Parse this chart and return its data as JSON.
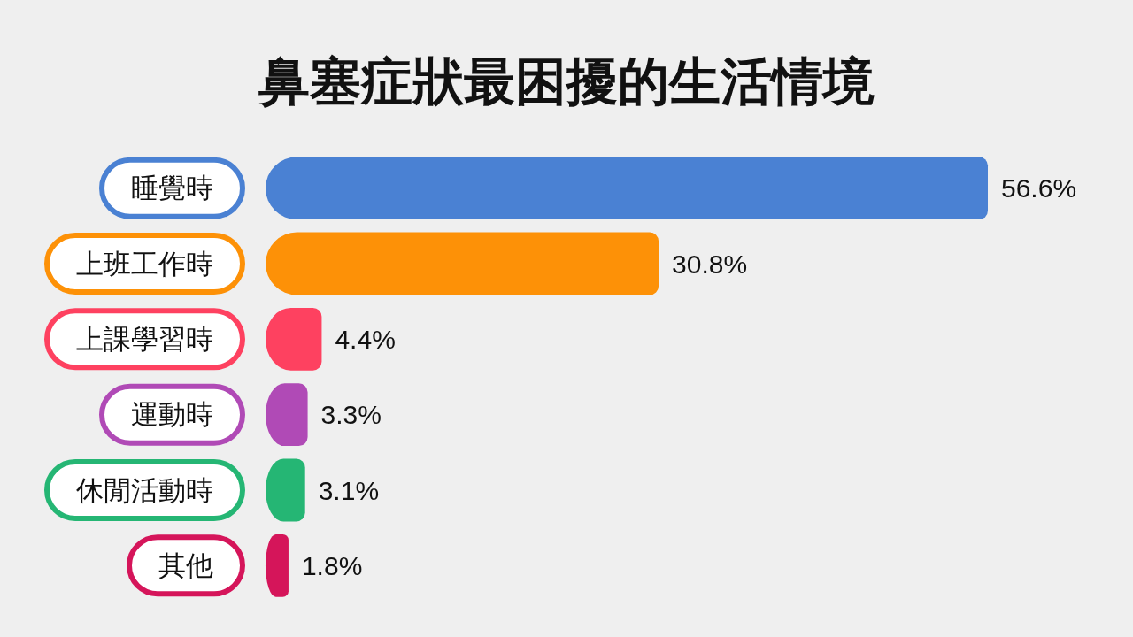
{
  "chart_data": {
    "type": "bar",
    "orientation": "horizontal",
    "title": "鼻塞症狀最困擾的生活情境",
    "categories": [
      "睡覺時",
      "上班工作時",
      "上課學習時",
      "運動時",
      "休閒活動時",
      "其他"
    ],
    "values": [
      56.6,
      30.8,
      4.4,
      3.3,
      3.1,
      1.8
    ],
    "colors": [
      "#4a81d3",
      "#fd9107",
      "#fe4160",
      "#b04ab6",
      "#25b674",
      "#d5155a"
    ],
    "value_labels": [
      "56.6%",
      "30.8%",
      "4.4%",
      "3.3%",
      "3.1%",
      "1.8%"
    ],
    "tick_labels": "y"
  }
}
